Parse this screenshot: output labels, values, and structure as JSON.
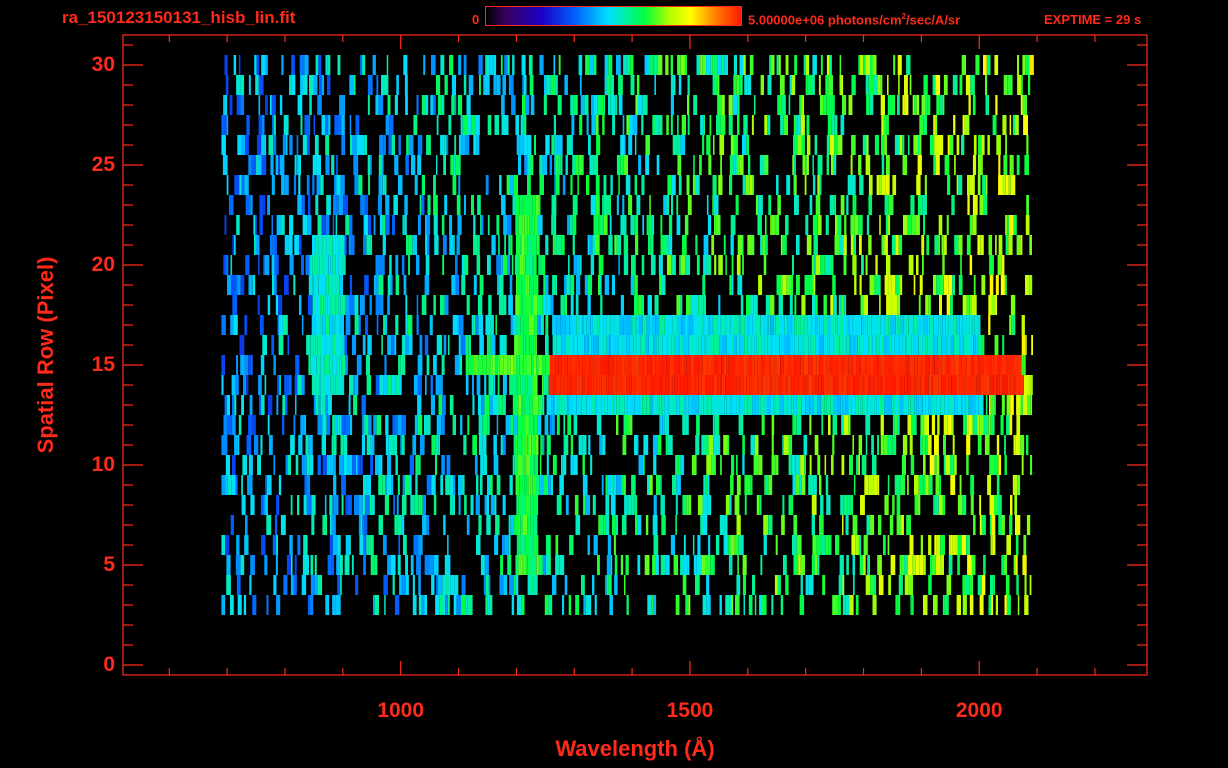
{
  "header": {
    "file_title": "ra_150123150131_hisb_lin.fit",
    "colorbar_min": "0",
    "colorbar_max_prefix": "5.00000e+06 photons/cm",
    "colorbar_max_exp": "2",
    "colorbar_max_suffix": "/sec/A/sr",
    "exptime": "EXPTIME = 29 s"
  },
  "colors": {
    "axis": "#ff2a1a",
    "background": "#000000"
  },
  "chart_data": {
    "type": "heatmap",
    "title": "ra_150123150131_hisb_lin.fit",
    "xlabel": "Wavelength (Å)",
    "ylabel": "Spatial Row (Pixel)",
    "xlim": [
      520,
      2290
    ],
    "ylim": [
      -0.5,
      31.5
    ],
    "xticks": [
      1000,
      1500,
      2000
    ],
    "xtick_labels": [
      "1000",
      "1500",
      "2000"
    ],
    "yticks": [
      0,
      5,
      10,
      15,
      20,
      25,
      30
    ],
    "ytick_labels": [
      "0",
      "5",
      "10",
      "15",
      "20",
      "25",
      "30"
    ],
    "colorbar": {
      "min": 0,
      "max": 5000000,
      "units": "photons/cm2/sec/A/sr",
      "colormap": "rainbow"
    },
    "signal_extent": {
      "x_min": 690,
      "x_max": 2090,
      "row_min": 3,
      "row_max": 30
    },
    "features": [
      {
        "x_start": 1255,
        "x_end": 2070,
        "rows": [
          14,
          15
        ],
        "level": 1.0
      },
      {
        "x_start": 1110,
        "x_end": 1255,
        "rows": [
          15
        ],
        "level": 0.65
      },
      {
        "x_start": 1195,
        "x_end": 1235,
        "row_start": 5,
        "row_end": 23,
        "level": 0.62
      },
      {
        "x_start": 1260,
        "x_end": 2000,
        "rows": [
          16,
          17,
          13
        ],
        "level": 0.5
      },
      {
        "x_start": 840,
        "x_end": 900,
        "row_start": 14,
        "row_end": 21,
        "level": 0.52
      }
    ]
  }
}
